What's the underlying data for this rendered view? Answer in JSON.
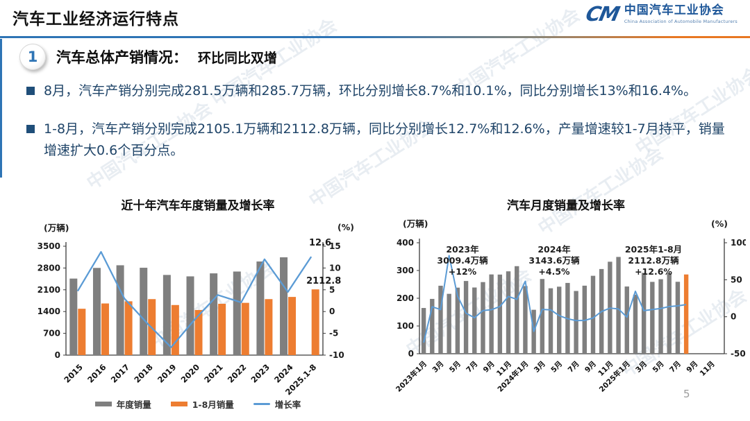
{
  "header": {
    "title": "汽车工业经济运行特点",
    "logo": {
      "mark": "CM",
      "name_cn": "中国汽车工业协会",
      "name_en": "China Association of Automobile Manufacturers"
    }
  },
  "section": {
    "number": "1",
    "title": "汽车总体产销情况：",
    "subtitle": "环比同比双增"
  },
  "bullets": [
    {
      "text": "8月，汽车产销分别完成281.5万辆和285.7万辆，环比分别增长8.7%和10.1%，同比分别增长13%和16.4%。"
    },
    {
      "text": "1-8月，汽车产销分别完成2105.1万辆和2112.8万辆，同比分别增长12.7%和12.6%，产量增速较1-7月持平，销量增速扩大0.6个百分点。"
    }
  ],
  "page_number": "5",
  "watermark": "中国汽车工业协会",
  "colors": {
    "bar_gray": "#7F7F7F",
    "bar_orange": "#ED7D31",
    "line_blue": "#5B9BD5",
    "accent_blue": "#2E74B5",
    "deep_blue": "#1F4E79",
    "rule_orange": "#E87722",
    "text_navy": "#1F4468"
  },
  "chart_data": [
    {
      "type": "bar",
      "title": "近十年汽车年度销量及增长率",
      "left_axis_label": "(万辆)",
      "right_axis_label": "(%)",
      "categories": [
        "2015",
        "2016",
        "2017",
        "2018",
        "2019",
        "2020",
        "2021",
        "2022",
        "2023",
        "2024",
        "2025.1-8"
      ],
      "series": [
        {
          "name": "年度销量",
          "type": "bar",
          "color": "bar_gray",
          "values": [
            2459.8,
            2802.8,
            2887.9,
            2808.1,
            2576.9,
            2531.1,
            2627.5,
            2686.4,
            3009.4,
            3143.6,
            null
          ]
        },
        {
          "name": "1-8月销量",
          "type": "bar",
          "color": "bar_orange",
          "values": [
            1490,
            1660,
            1730,
            1800,
            1610,
            1450,
            1650,
            1680,
            1800,
            1870,
            2112.8
          ]
        },
        {
          "name": "增长率",
          "type": "line",
          "axis": "right",
          "color": "line_blue",
          "values": [
            4.7,
            13.7,
            3.0,
            -2.8,
            -8.2,
            -1.9,
            3.8,
            2.1,
            12.0,
            4.5,
            12.6
          ]
        }
      ],
      "left_axis": {
        "min": 0,
        "max": 3500,
        "ticks": [
          3500,
          2800,
          2100,
          1400,
          700,
          0
        ]
      },
      "right_axis": {
        "min": -10,
        "max": 15,
        "ticks": [
          15,
          10,
          5,
          0,
          -5,
          -10
        ]
      },
      "point_labels": {
        "line_end": "12.6",
        "last_bar": "2112.8"
      },
      "legend_position": "bottom"
    },
    {
      "type": "bar",
      "title": "汽车月度销量及增长率",
      "left_axis_label": "(万辆)",
      "right_axis_label": "(%)",
      "x_slots": 36,
      "x_tick_labels": [
        "2023年1月",
        "3月",
        "5月",
        "7月",
        "9月",
        "11月",
        "2024年1月",
        "3月",
        "5月",
        "7月",
        "9月",
        "11月",
        "2025年1月",
        "3月",
        "5月",
        "7月",
        "9月",
        "11月"
      ],
      "series": [
        {
          "name": "月度销量",
          "type": "bar",
          "color": "bar_gray",
          "last_bar_color": "bar_orange",
          "values": [
            164.9,
            197.6,
            245.1,
            215.9,
            238.2,
            262.2,
            238.7,
            258.2,
            285.8,
            285.3,
            297.0,
            315.6,
            243.9,
            158.4,
            269.4,
            235.9,
            241.7,
            255.2,
            226.2,
            245.3,
            280.9,
            305.3,
            331.6,
            348.9,
            242.3,
            212.9,
            291.5,
            259.0,
            268.6,
            290.4,
            259.3,
            285.7
          ]
        },
        {
          "name": "增长率",
          "type": "line",
          "axis": "right",
          "color": "line_blue",
          "values": [
            -35.0,
            13.5,
            9.7,
            82.7,
            27.9,
            4.8,
            -1.4,
            8.4,
            9.5,
            13.8,
            27.4,
            23.5,
            47.9,
            -19.9,
            9.9,
            9.3,
            1.5,
            -2.7,
            -5.2,
            -5.0,
            -1.7,
            7.0,
            11.7,
            10.5,
            -0.6,
            34.4,
            8.2,
            9.8,
            11.2,
            13.8,
            14.7,
            16.4
          ]
        }
      ],
      "left_axis": {
        "min": 0,
        "max": 400,
        "ticks": [
          400,
          300,
          200,
          100,
          0
        ]
      },
      "right_axis": {
        "min": -50,
        "max": 100,
        "ticks": [
          100,
          50,
          0,
          -50
        ]
      },
      "annotations": [
        {
          "lines": [
            "2023年",
            "3009.4万辆",
            "+12%"
          ]
        },
        {
          "lines": [
            "2024年",
            "3143.6万辆",
            "+4.5%"
          ]
        },
        {
          "lines": [
            "2025年1-8月",
            "2112.8万辆",
            "+12.6%"
          ]
        }
      ],
      "legend_position": "none"
    }
  ]
}
